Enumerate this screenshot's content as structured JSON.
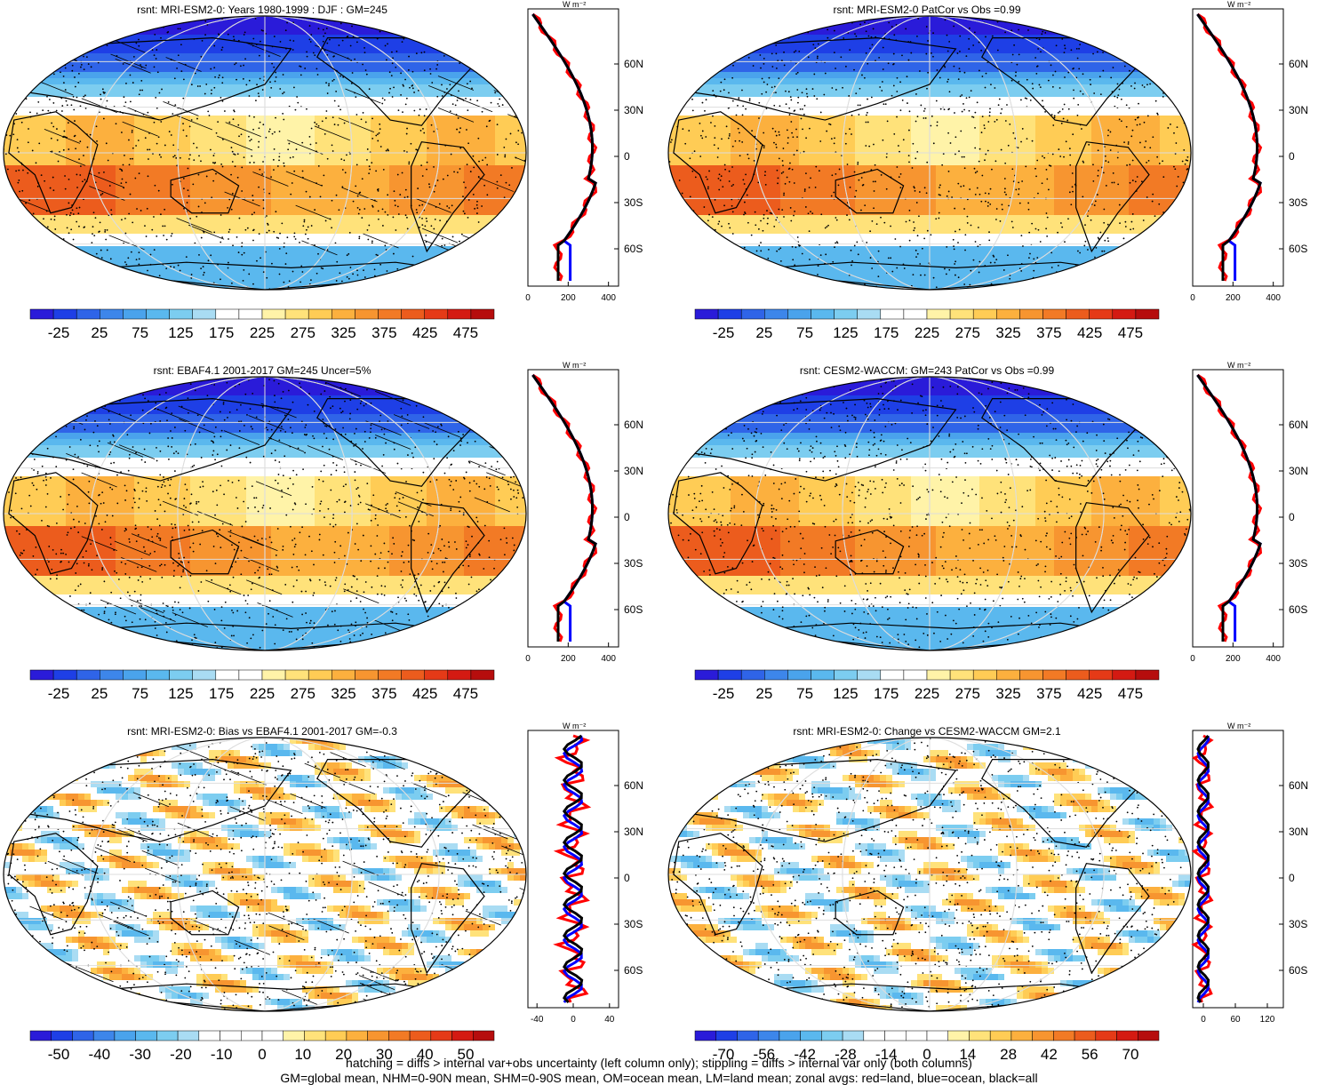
{
  "panels": [
    {
      "title": "rsnt: MRI-ESM2-0: Years 1980-1999 : DJF : GM=245",
      "kind": "mean",
      "hatching": true,
      "colorbar": {
        "labels": [
          "-25",
          "25",
          "75",
          "125",
          "175",
          "225",
          "275",
          "325",
          "375",
          "425",
          "475"
        ]
      },
      "zonal": {
        "x_ticks": [
          "0",
          "200",
          "400"
        ],
        "x_range": [
          0,
          450
        ]
      }
    },
    {
      "title": "rsnt: MRI-ESM2-0 PatCor vs Obs =0.99",
      "kind": "mean",
      "hatching": false,
      "colorbar": {
        "labels": [
          "-25",
          "25",
          "75",
          "125",
          "175",
          "225",
          "275",
          "325",
          "375",
          "425",
          "475"
        ]
      },
      "zonal": {
        "x_ticks": [
          "0",
          "200",
          "400"
        ],
        "x_range": [
          0,
          450
        ]
      }
    },
    {
      "title": "rsnt: EBAF4.1 2001-2017 GM=245 Uncer=5%",
      "kind": "mean",
      "hatching": true,
      "colorbar": {
        "labels": [
          "-25",
          "25",
          "75",
          "125",
          "175",
          "225",
          "275",
          "325",
          "375",
          "425",
          "475"
        ]
      },
      "zonal": {
        "x_ticks": [
          "0",
          "200",
          "400"
        ],
        "x_range": [
          0,
          450
        ]
      }
    },
    {
      "title": "rsnt: CESM2-WACCM: GM=243 PatCor vs Obs =0.99",
      "kind": "mean",
      "hatching": false,
      "colorbar": {
        "labels": [
          "-25",
          "25",
          "75",
          "125",
          "175",
          "225",
          "275",
          "325",
          "375",
          "425",
          "475"
        ]
      },
      "zonal": {
        "x_ticks": [
          "0",
          "200",
          "400"
        ],
        "x_range": [
          0,
          450
        ]
      }
    },
    {
      "title": "rsnt: MRI-ESM2-0: Bias vs EBAF4.1 2001-2017 GM=-0.3",
      "kind": "diff",
      "hatching": true,
      "colorbar": {
        "labels": [
          "-50",
          "-40",
          "-30",
          "-20",
          "-10",
          "0",
          "10",
          "20",
          "30",
          "40",
          "50"
        ]
      },
      "zonal": {
        "x_ticks": [
          "-40",
          "0",
          "40"
        ],
        "x_range": [
          -50,
          50
        ]
      }
    },
    {
      "title": "rsnt: MRI-ESM2-0: Change vs CESM2-WACCM GM=2.1",
      "kind": "diff",
      "hatching": false,
      "colorbar": {
        "labels": [
          "-70",
          "-56",
          "-42",
          "-28",
          "-14",
          "0",
          "14",
          "28",
          "42",
          "56",
          "70"
        ]
      },
      "zonal": {
        "x_ticks": [
          "0",
          "60",
          "120"
        ],
        "x_range": [
          -20,
          150
        ]
      }
    }
  ],
  "zonal_units": "W m⁻²",
  "lat_ticks": [
    "60N",
    "30N",
    "0",
    "30S",
    "60S"
  ],
  "colors": {
    "mean_scale": [
      "#2a1bd9",
      "#1e3fe6",
      "#2f64e8",
      "#3d86ea",
      "#4aa3ec",
      "#5ab8ee",
      "#7ccdf0",
      "#a9dcf3",
      "#ffffff",
      "#ffffff",
      "#fff3a8",
      "#ffe27a",
      "#ffcc55",
      "#fcb03e",
      "#f79530",
      "#f27a25",
      "#ec5c1d",
      "#e53a17",
      "#d41a12",
      "#b60d0d"
    ],
    "diff_scale": [
      "#2a1bd9",
      "#1e3fe6",
      "#2f64e8",
      "#3d86ea",
      "#4aa3ec",
      "#5ab8ee",
      "#7ccdf0",
      "#a9dcf3",
      "#ffffff",
      "#ffffff",
      "#ffffff",
      "#ffffff",
      "#fff3a8",
      "#ffe27a",
      "#ffcc55",
      "#fcb03e",
      "#f79530",
      "#f27a25",
      "#ec5c1d",
      "#e53a17",
      "#d41a12",
      "#b60d0d"
    ],
    "land": "#ff0000",
    "ocean": "#0000ff",
    "all": "#000000"
  },
  "footer": {
    "line1": "hatching = diffs > internal var+obs uncertainty (left column only); stippling = diffs > internal var only (both columns)",
    "line2": "GM=global mean, NHM=0-90N mean, SHM=0-90S mean, OM=ocean mean, LM=land mean; zonal avgs: red=land, blue=ocean, black=all"
  }
}
